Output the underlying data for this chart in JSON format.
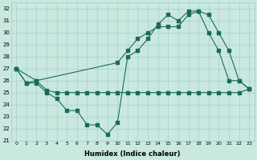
{
  "xlabel": "Humidex (Indice chaleur)",
  "background_color": "#c8e8e0",
  "grid_color": "#a0ccc0",
  "line_color": "#1a6b5a",
  "xlim": [
    -0.5,
    23.5
  ],
  "ylim": [
    21,
    32.5
  ],
  "yticks": [
    21,
    22,
    23,
    24,
    25,
    26,
    27,
    28,
    29,
    30,
    31,
    32
  ],
  "xticks": [
    0,
    1,
    2,
    3,
    4,
    5,
    6,
    7,
    8,
    9,
    10,
    11,
    12,
    13,
    14,
    15,
    16,
    17,
    18,
    19,
    20,
    21,
    22,
    23
  ],
  "series1": {
    "x": [
      0,
      1,
      2,
      3,
      4,
      5,
      6,
      7,
      8,
      9,
      10,
      11,
      12,
      13,
      14,
      15,
      16,
      17,
      18,
      19,
      20,
      21,
      22,
      23
    ],
    "y": [
      27,
      25.8,
      26,
      25.2,
      25,
      25,
      25,
      25,
      25,
      25,
      25,
      25,
      25,
      25,
      25,
      25,
      25,
      25,
      25,
      25,
      25,
      25,
      25,
      25.3
    ]
  },
  "series2": {
    "x": [
      0,
      1,
      2,
      3,
      4,
      5,
      6,
      7,
      8,
      9,
      10,
      11,
      12,
      13,
      14,
      15,
      16,
      17,
      18,
      19,
      20,
      21,
      22,
      23
    ],
    "y": [
      27,
      25.8,
      25.8,
      25,
      24.5,
      23.5,
      23.5,
      22.3,
      22.3,
      21.5,
      22.5,
      28,
      28.5,
      29.5,
      30.7,
      31.5,
      31.0,
      31.8,
      31.8,
      30.0,
      28.5,
      26.0,
      26.0,
      25.3
    ]
  },
  "series3": {
    "x": [
      0,
      2,
      10,
      11,
      12,
      13,
      14,
      15,
      16,
      17,
      18,
      19,
      20,
      21,
      22,
      23
    ],
    "y": [
      27,
      26,
      27.5,
      28.5,
      29.5,
      30.0,
      30.5,
      30.5,
      30.5,
      31.5,
      31.8,
      31.5,
      30.0,
      28.5,
      26.0,
      25.3
    ]
  }
}
